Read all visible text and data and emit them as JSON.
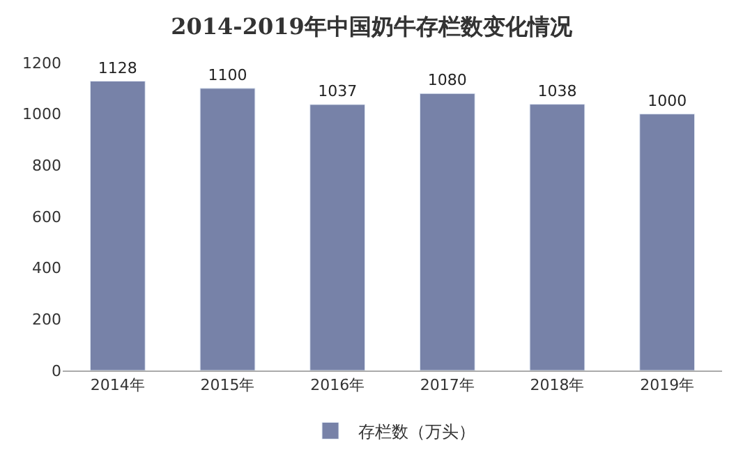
{
  "chart_data": {
    "type": "bar",
    "title": "2014-2019年中国奶牛存栏数变化情况",
    "categories": [
      "2014年",
      "2015年",
      "2016年",
      "2017年",
      "2018年",
      "2019年"
    ],
    "series": [
      {
        "name": "存栏数（万头）",
        "color": "#7782a8",
        "values": [
          1128,
          1100,
          1037,
          1080,
          1038,
          1000
        ]
      }
    ],
    "ylim": [
      0,
      1200
    ],
    "yticks": [
      0,
      200,
      400,
      600,
      800,
      1000,
      1200
    ],
    "data_labels": true,
    "grid": false,
    "legend": "bottom"
  }
}
